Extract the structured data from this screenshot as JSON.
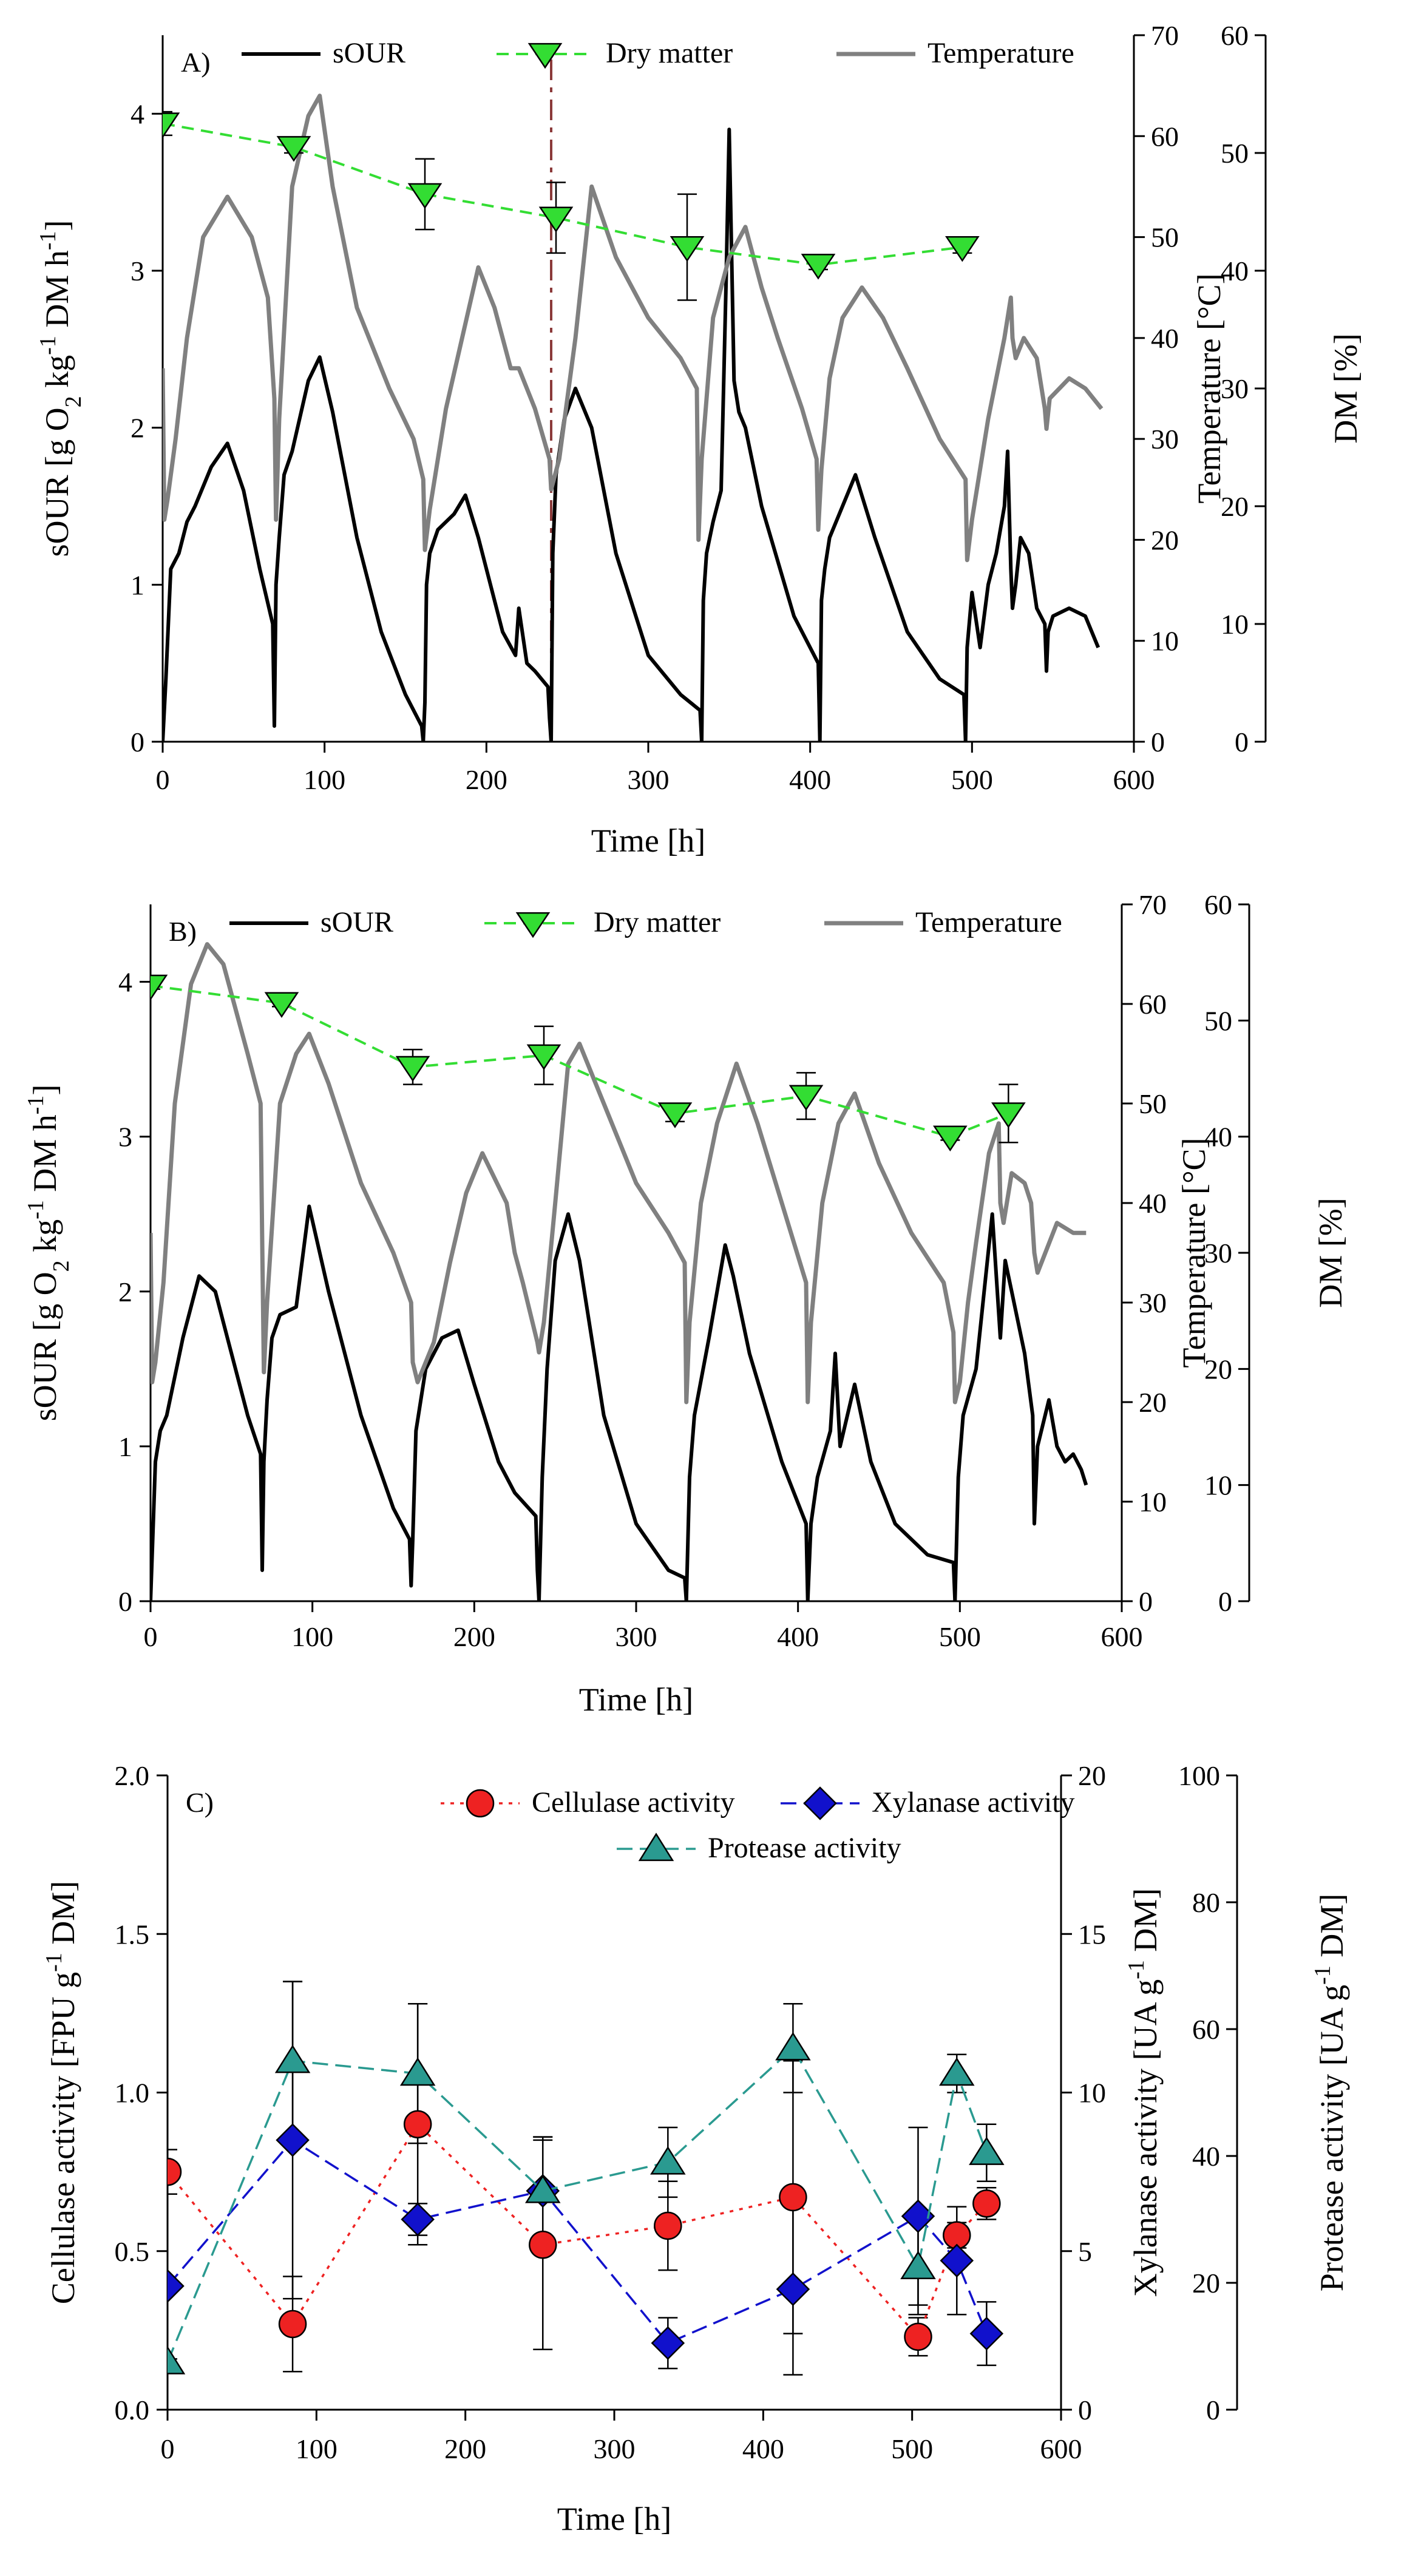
{
  "chart_data": [
    {
      "panel": "A)",
      "type": "line",
      "xlabel": "Time [h]",
      "ylabel_left": "sOUR [g O2 kg-1 DM h-1]",
      "ylabel_right1": "Temperature [°C]",
      "ylabel_right2": "DM [%]",
      "xlim": [
        0,
        600
      ],
      "xticks": [
        0,
        100,
        200,
        300,
        400,
        500,
        600
      ],
      "ylim_left": [
        0,
        4.5
      ],
      "yticks_left": [
        0,
        1,
        2,
        3,
        4
      ],
      "ylim_right1": [
        0,
        70
      ],
      "yticks_right1": [
        0,
        10,
        20,
        30,
        40,
        50,
        60,
        70
      ],
      "ylim_right2": [
        0,
        60
      ],
      "yticks_right2": [
        0,
        10,
        20,
        30,
        40,
        50,
        60
      ],
      "legend": [
        "sOUR",
        "Dry matter",
        "Temperature"
      ],
      "legend_position": "top",
      "marker_line_x": 240,
      "colors": {
        "sOUR": "#000000",
        "Dry matter": "#33dd33",
        "Temperature": "#808080",
        "marker_line": "#8b3a3a"
      },
      "series": [
        {
          "name": "sOUR",
          "axis": "left",
          "x": [
            0,
            2,
            5,
            10,
            15,
            20,
            30,
            40,
            50,
            60,
            68,
            69,
            70,
            72,
            75,
            80,
            90,
            97,
            105,
            120,
            135,
            150,
            160,
            161,
            162,
            163,
            165,
            170,
            180,
            187,
            195,
            210,
            218,
            220,
            225,
            230,
            238,
            239,
            240,
            241,
            243,
            248,
            255,
            265,
            280,
            300,
            320,
            332,
            333,
            334,
            336,
            340,
            345,
            348,
            350,
            353,
            356,
            360,
            370,
            390,
            405,
            406,
            407,
            409,
            412,
            420,
            428,
            440,
            460,
            480,
            495,
            496,
            497,
            500,
            505,
            510,
            515,
            520,
            522,
            524,
            525,
            527,
            530,
            535,
            540,
            545,
            546,
            547,
            550,
            560,
            570,
            578
          ],
          "y": [
            0,
            0.4,
            1.1,
            1.2,
            1.4,
            1.5,
            1.75,
            1.9,
            1.6,
            1.1,
            0.75,
            0.1,
            1.0,
            1.3,
            1.7,
            1.85,
            2.3,
            2.45,
            2.1,
            1.3,
            0.7,
            0.3,
            0.1,
            0,
            0.25,
            1.0,
            1.2,
            1.35,
            1.45,
            1.57,
            1.3,
            0.7,
            0.55,
            0.85,
            0.5,
            0.45,
            0.35,
            0.15,
            0,
            1.2,
            1.7,
            2.05,
            2.25,
            2.0,
            1.2,
            0.55,
            0.3,
            0.2,
            0,
            0.9,
            1.2,
            1.4,
            1.6,
            2.9,
            3.9,
            2.3,
            2.1,
            2.0,
            1.5,
            0.8,
            0.5,
            0,
            0.9,
            1.1,
            1.3,
            1.5,
            1.7,
            1.3,
            0.7,
            0.4,
            0.3,
            0,
            0.6,
            0.95,
            0.6,
            1.0,
            1.2,
            1.5,
            1.85,
            1.1,
            0.85,
            1.0,
            1.3,
            1.2,
            0.85,
            0.75,
            0.45,
            0.7,
            0.8,
            0.85,
            0.8,
            0.6
          ]
        },
        {
          "name": "Temperature",
          "axis": "right1",
          "x": [
            0,
            1,
            3,
            8,
            15,
            25,
            40,
            55,
            65,
            69,
            70,
            72,
            80,
            90,
            97,
            105,
            120,
            140,
            155,
            161,
            162,
            165,
            175,
            185,
            195,
            205,
            215,
            220,
            225,
            230,
            239,
            240,
            245,
            255,
            265,
            280,
            300,
            320,
            330,
            331,
            333,
            340,
            350,
            360,
            370,
            380,
            395,
            404,
            405,
            407,
            412,
            420,
            432,
            445,
            460,
            480,
            496,
            497,
            500,
            510,
            520,
            524,
            525,
            527,
            532,
            540,
            545,
            546,
            548,
            560,
            570,
            580
          ],
          "y": [
            37,
            22,
            24,
            30,
            40,
            50,
            54,
            50,
            44,
            34,
            22,
            32,
            55,
            62,
            64,
            55,
            43,
            35,
            30,
            26,
            19,
            23,
            33,
            40,
            47,
            43,
            37,
            37,
            35,
            33,
            28,
            25,
            28,
            40,
            55,
            48,
            42,
            38,
            35,
            20,
            28,
            42,
            48,
            51,
            45,
            40,
            33,
            28,
            21,
            27,
            36,
            42,
            45,
            42,
            37,
            30,
            26,
            18,
            22,
            32,
            40,
            44,
            40,
            38,
            40,
            38,
            33,
            31,
            34,
            36,
            35,
            33
          ]
        },
        {
          "name": "Dry matter",
          "axis": "right2",
          "x": [
            0,
            81,
            162,
            243,
            324,
            405,
            494
          ],
          "y": [
            52.5,
            50.5,
            46.5,
            44.5,
            42,
            40.5,
            42
          ],
          "error": [
            1.0,
            0.5,
            3.0,
            3.0,
            4.5,
            0.4,
            0.5
          ]
        }
      ]
    },
    {
      "panel": "B)",
      "type": "line",
      "xlabel": "Time [h]",
      "ylabel_left": "sOUR [g O2 kg-1 DM h-1]",
      "ylabel_right1": "Temperature [°C]",
      "ylabel_right2": "DM [%]",
      "xlim": [
        0,
        600
      ],
      "xticks": [
        0,
        100,
        200,
        300,
        400,
        500,
        600
      ],
      "ylim_left": [
        0,
        4.5
      ],
      "yticks_left": [
        0,
        1,
        2,
        3,
        4
      ],
      "ylim_right1": [
        0,
        70
      ],
      "yticks_right1": [
        0,
        10,
        20,
        30,
        40,
        50,
        60,
        70
      ],
      "ylim_right2": [
        0,
        60
      ],
      "yticks_right2": [
        0,
        10,
        20,
        30,
        40,
        50,
        60
      ],
      "legend": [
        "sOUR",
        "Dry matter",
        "Temperature"
      ],
      "legend_position": "top",
      "colors": {
        "sOUR": "#000000",
        "Dry matter": "#33dd33",
        "Temperature": "#808080"
      },
      "series": [
        {
          "name": "sOUR",
          "axis": "left",
          "x": [
            0,
            1,
            3,
            6,
            10,
            20,
            30,
            40,
            50,
            60,
            68,
            69,
            70,
            72,
            75,
            80,
            90,
            98,
            110,
            130,
            150,
            160,
            161,
            162,
            164,
            170,
            180,
            190,
            200,
            215,
            225,
            238,
            239,
            240,
            242,
            245,
            250,
            258,
            265,
            280,
            300,
            320,
            330,
            331,
            333,
            336,
            345,
            355,
            360,
            370,
            390,
            405,
            406,
            408,
            412,
            420,
            423,
            426,
            435,
            445,
            460,
            480,
            496,
            497,
            499,
            502,
            510,
            515,
            520,
            525,
            528,
            532,
            540,
            545,
            546,
            548,
            555,
            560,
            565,
            570,
            575,
            578
          ],
          "y": [
            0,
            0.3,
            0.9,
            1.1,
            1.2,
            1.7,
            2.1,
            2.0,
            1.6,
            1.2,
            0.95,
            0.2,
            0.9,
            1.3,
            1.7,
            1.85,
            1.9,
            2.55,
            2.0,
            1.2,
            0.6,
            0.4,
            0.1,
            0.4,
            1.1,
            1.5,
            1.7,
            1.75,
            1.4,
            0.9,
            0.7,
            0.55,
            0.2,
            0,
            0.8,
            1.5,
            2.2,
            2.5,
            2.2,
            1.2,
            0.5,
            0.2,
            0.15,
            0,
            0.8,
            1.2,
            1.7,
            2.3,
            2.1,
            1.6,
            0.9,
            0.5,
            0,
            0.5,
            0.8,
            1.1,
            1.6,
            1.0,
            1.4,
            0.9,
            0.5,
            0.3,
            0.25,
            0,
            0.8,
            1.2,
            1.5,
            2.0,
            2.5,
            1.7,
            2.2,
            2.0,
            1.6,
            1.2,
            0.5,
            1.0,
            1.3,
            1.0,
            0.9,
            0.95,
            0.85,
            0.75
          ]
        },
        {
          "name": "Temperature",
          "axis": "right1",
          "x": [
            0,
            1,
            3,
            8,
            15,
            25,
            35,
            45,
            60,
            68,
            69,
            70,
            72,
            80,
            90,
            98,
            110,
            130,
            150,
            161,
            162,
            165,
            175,
            185,
            195,
            205,
            220,
            225,
            230,
            239,
            240,
            243,
            250,
            258,
            265,
            280,
            300,
            320,
            330,
            331,
            333,
            340,
            350,
            362,
            375,
            390,
            405,
            406,
            408,
            415,
            425,
            435,
            450,
            470,
            490,
            496,
            497,
            500,
            505,
            510,
            518,
            524,
            525,
            527,
            532,
            540,
            544,
            546,
            548,
            560,
            570,
            578
          ],
          "y": [
            37,
            22,
            24,
            32,
            50,
            62,
            66,
            64,
            55,
            50,
            36,
            23,
            30,
            50,
            55,
            57,
            52,
            42,
            35,
            30,
            24,
            22,
            26,
            34,
            41,
            45,
            40,
            35,
            32,
            26,
            25,
            28,
            40,
            54,
            56,
            50,
            42,
            37,
            34,
            20,
            28,
            40,
            48,
            54,
            48,
            40,
            32,
            20,
            28,
            40,
            48,
            51,
            44,
            37,
            32,
            27,
            20,
            22,
            30,
            36,
            45,
            48,
            40,
            38,
            43,
            42,
            40,
            35,
            33,
            38,
            37,
            37
          ]
        },
        {
          "name": "Dry matter",
          "axis": "right2",
          "x": [
            0,
            81,
            162,
            243,
            324,
            405,
            494,
            530
          ],
          "y": [
            53,
            51.5,
            46,
            47,
            42,
            43.5,
            40,
            42
          ],
          "error": [
            0.3,
            0.3,
            1.5,
            2.5,
            0.7,
            2.0,
            0.3,
            2.5
          ]
        }
      ]
    },
    {
      "panel": "C)",
      "type": "line",
      "xlabel": "Time [h]",
      "ylabel_left": "Cellulase activity [FPU g-1 DM]",
      "ylabel_right1": "Xylanase activity [UA g-1 DM]",
      "ylabel_right2": "Protease activity [UA g-1 DM]",
      "xlim": [
        0,
        600
      ],
      "xticks": [
        0,
        100,
        200,
        300,
        400,
        500,
        600
      ],
      "ylim_left": [
        0,
        2.0
      ],
      "yticks_left": [
        "0.0",
        "0.5",
        "1.0",
        "1.5",
        "2.0"
      ],
      "ylim_right1": [
        0,
        20
      ],
      "yticks_right1": [
        0,
        5,
        10,
        15,
        20
      ],
      "ylim_right2": [
        0,
        100
      ],
      "yticks_right2": [
        0,
        20,
        40,
        60,
        80,
        100
      ],
      "legend": [
        "Cellulase activity",
        "Xylanase activity",
        "Protease activity"
      ],
      "legend_position": "top-right",
      "colors": {
        "Cellulase activity": "#ee2222",
        "Xylanase activity": "#1111cc",
        "Protease activity": "#2a9a90"
      },
      "series": [
        {
          "name": "Cellulase activity",
          "axis": "left",
          "x": [
            0,
            84,
            168,
            252,
            336,
            420,
            504,
            530,
            550
          ],
          "y": [
            0.75,
            0.27,
            0.9,
            0.52,
            0.58,
            0.67,
            0.23,
            0.55,
            0.65
          ],
          "error": [
            0.07,
            0.15,
            0.38,
            0.33,
            0.14,
            0.43,
            0.06,
            0.04,
            0.05
          ]
        },
        {
          "name": "Xylanase activity",
          "axis": "right1",
          "x": [
            0,
            84,
            168,
            252,
            336,
            420,
            504,
            530,
            550
          ],
          "y": [
            3.9,
            8.5,
            6.0,
            6.9,
            2.1,
            3.8,
            6.1,
            4.7,
            2.4
          ],
          "error": [
            0.1,
            5.0,
            0.5,
            1.7,
            0.8,
            2.7,
            2.8,
            1.7,
            1.0
          ]
        },
        {
          "name": "Protease activity",
          "axis": "right2",
          "x": [
            0,
            84,
            168,
            252,
            336,
            420,
            504,
            530,
            550
          ],
          "y": [
            7.5,
            55,
            53,
            34.5,
            39,
            57,
            22.5,
            53,
            40.5
          ],
          "error": [
            0.5,
            12.5,
            11,
            8.5,
            5.5,
            7,
            7.5,
            3,
            4.5
          ]
        }
      ]
    }
  ]
}
